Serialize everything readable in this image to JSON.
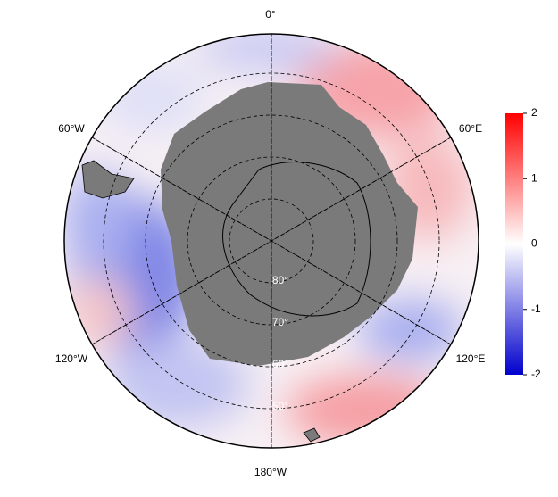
{
  "map": {
    "lon_labels": [
      "0°",
      "60°E",
      "120°E",
      "180°W",
      "120°W",
      "60°W"
    ],
    "lat_labels": [
      "80°",
      "70°",
      "60°",
      "50°"
    ]
  },
  "colorbar": {
    "lim": [
      -2,
      2
    ],
    "ticks": [
      2,
      1,
      0,
      -1,
      -2
    ],
    "colors": [
      "#0000cc",
      "#ffffff",
      "#ff0000"
    ]
  }
}
